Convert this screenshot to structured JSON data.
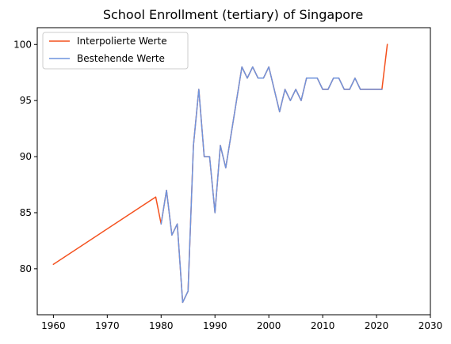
{
  "chart_data": {
    "type": "line",
    "title": "School Enrollment (tertiary) of Singapore",
    "xlabel": "",
    "ylabel": "",
    "xlim": [
      1957,
      2030
    ],
    "ylim": [
      75.9,
      101.5
    ],
    "xticks": [
      1960,
      1970,
      1980,
      1990,
      2000,
      2010,
      2020,
      2030
    ],
    "yticks": [
      80,
      85,
      90,
      95,
      100
    ],
    "grid": false,
    "legend_position": "top-left",
    "series": [
      {
        "name": "Interpolierte Werte",
        "color": "#f4511e",
        "x": [
          1960,
          1979,
          1980,
          1981,
          1982,
          1983,
          1984,
          1985,
          1986,
          1987,
          1988,
          1989,
          1990,
          1991,
          1992,
          1993,
          1994,
          1995,
          1996,
          1997,
          1998,
          1999,
          2000,
          2001,
          2002,
          2003,
          2004,
          2005,
          2006,
          2007,
          2008,
          2009,
          2010,
          2011,
          2012,
          2013,
          2014,
          2015,
          2016,
          2017,
          2018,
          2019,
          2020,
          2021,
          2022
        ],
        "y": [
          80.4,
          86.4,
          84,
          87,
          83,
          84,
          77,
          78,
          91,
          96,
          90,
          90,
          85,
          91,
          89,
          92,
          95,
          98,
          97,
          98,
          97,
          97,
          98,
          96,
          94,
          96,
          95,
          96,
          95,
          97,
          97,
          97,
          96,
          96,
          97,
          97,
          96,
          96,
          97,
          96,
          96,
          96,
          96,
          96,
          100
        ]
      },
      {
        "name": "Bestehende Werte",
        "color": "#6f94dd",
        "x": [
          1980,
          1981,
          1982,
          1983,
          1984,
          1985,
          1986,
          1987,
          1988,
          1989,
          1990,
          1991,
          1992,
          1993,
          1994,
          1995,
          1996,
          1997,
          1998,
          1999,
          2000,
          2001,
          2002,
          2003,
          2004,
          2005,
          2006,
          2007,
          2008,
          2009,
          2010,
          2011,
          2012,
          2013,
          2014,
          2015,
          2016,
          2017,
          2018,
          2019,
          2020,
          2021
        ],
        "y": [
          84,
          87,
          83,
          84,
          77,
          78,
          91,
          96,
          90,
          90,
          85,
          91,
          89,
          92,
          95,
          98,
          97,
          98,
          97,
          97,
          98,
          96,
          94,
          96,
          95,
          96,
          95,
          97,
          97,
          97,
          96,
          96,
          97,
          97,
          96,
          96,
          97,
          96,
          96,
          96,
          96,
          96
        ]
      }
    ]
  }
}
